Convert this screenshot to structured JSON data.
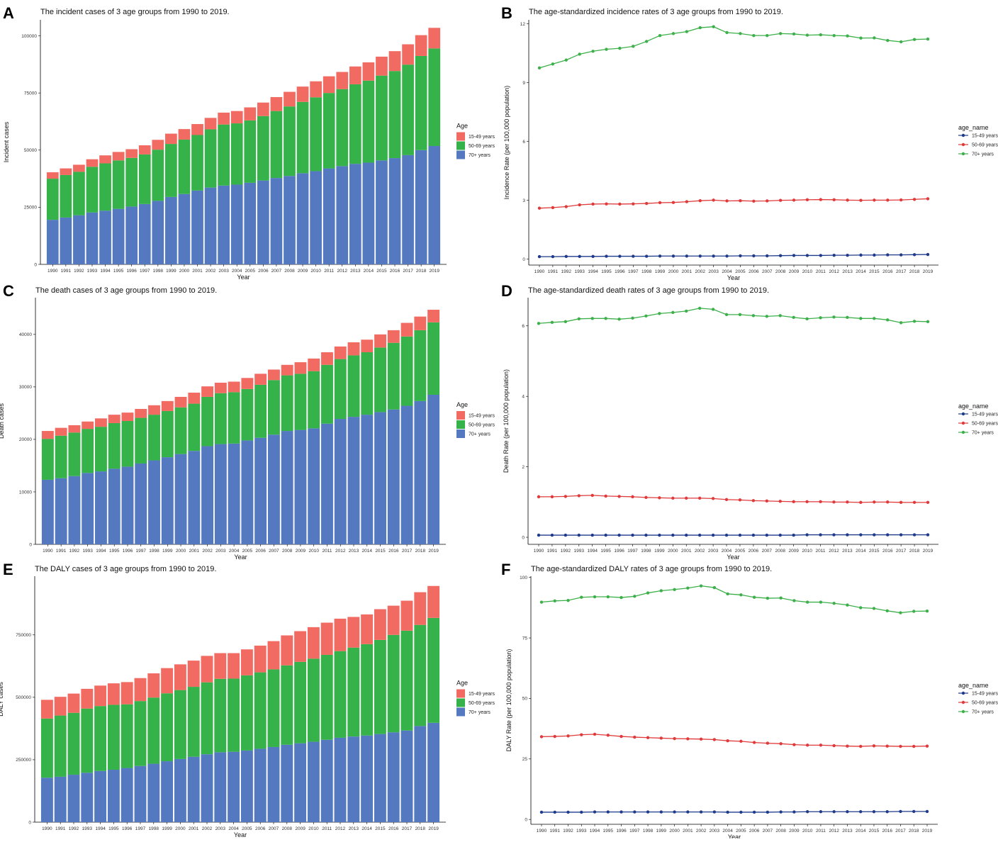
{
  "years": [
    "1990",
    "1991",
    "1992",
    "1993",
    "1994",
    "1995",
    "1996",
    "1997",
    "1998",
    "1999",
    "2000",
    "2001",
    "2002",
    "2003",
    "2004",
    "2005",
    "2006",
    "2007",
    "2008",
    "2009",
    "2010",
    "2011",
    "2012",
    "2013",
    "2014",
    "2015",
    "2016",
    "2017",
    "2018",
    "2019"
  ],
  "colors": {
    "young": "#F26B63",
    "mid": "#35B24A",
    "old": "#5579C0",
    "line_young": "#1F3B8C",
    "line_mid": "#E03A3A",
    "line_old": "#3DB04B"
  },
  "chart_data": [
    {
      "letter": "A",
      "type": "bar",
      "title": "The incident cases of 3 age groups from 1990 to 2019.",
      "xlabel": "Year",
      "ylabel": "Incident cases",
      "ylim": [
        0,
        107000
      ],
      "yticks": [
        0,
        25000,
        50000,
        75000,
        100000
      ],
      "ytick_labels": [
        "0",
        "25000",
        "50000",
        "75000",
        "100000"
      ],
      "legend": {
        "title": "Age",
        "labels": [
          "15-49 years",
          "50-69 years",
          "70+ years"
        ],
        "position": "right"
      },
      "series": [
        {
          "name": "70+ years",
          "values": [
            19500,
            20500,
            21500,
            22700,
            23500,
            24300,
            25300,
            26400,
            27800,
            29500,
            30800,
            32300,
            33600,
            34500,
            34900,
            35700,
            36700,
            37800,
            38700,
            39900,
            40800,
            42000,
            43000,
            44000,
            44500,
            45500,
            46500,
            47800,
            50000,
            51800
          ]
        },
        {
          "name": "50-69 years",
          "values": [
            18000,
            18600,
            19000,
            20000,
            20700,
            21200,
            21300,
            21700,
            22400,
            23200,
            23800,
            24300,
            25500,
            26700,
            26800,
            27300,
            28200,
            29300,
            30400,
            31200,
            32300,
            33000,
            33700,
            34800,
            35900,
            37100,
            38100,
            39600,
            41200,
            42700
          ]
        },
        {
          "name": "15-49 years",
          "values": [
            2800,
            2900,
            3100,
            3300,
            3500,
            3700,
            3800,
            4000,
            4300,
            4500,
            4600,
            4800,
            5000,
            5200,
            5400,
            5700,
            5900,
            6100,
            6400,
            6700,
            7000,
            7300,
            7500,
            7800,
            8000,
            8300,
            8700,
            8900,
            9100,
            9000
          ]
        }
      ]
    },
    {
      "letter": "B",
      "type": "line",
      "title": "The age-standardized incidence rates of 3 age groups from 1990 to 2019.",
      "xlabel": "Year",
      "ylabel": "Incidence Rate (per 100,000 population)",
      "ylim": [
        -0.3,
        12.2
      ],
      "yticks": [
        0,
        3,
        6,
        9,
        12
      ],
      "ytick_labels": [
        "0",
        "3",
        "6",
        "9",
        "12"
      ],
      "legend": {
        "title": "age_name",
        "labels": [
          "15-49 years",
          "50-69 years",
          "70+ years"
        ],
        "position": "right"
      },
      "series": [
        {
          "name": "15-49 years",
          "values": [
            0.13,
            0.13,
            0.14,
            0.14,
            0.14,
            0.15,
            0.15,
            0.15,
            0.15,
            0.16,
            0.16,
            0.16,
            0.16,
            0.16,
            0.16,
            0.17,
            0.17,
            0.17,
            0.18,
            0.19,
            0.19,
            0.19,
            0.2,
            0.2,
            0.21,
            0.21,
            0.22,
            0.22,
            0.23,
            0.24
          ]
        },
        {
          "name": "50-69 years",
          "values": [
            2.6,
            2.63,
            2.68,
            2.77,
            2.81,
            2.82,
            2.81,
            2.82,
            2.84,
            2.88,
            2.89,
            2.93,
            2.98,
            3.01,
            2.97,
            2.98,
            2.96,
            2.97,
            3.0,
            3.01,
            3.03,
            3.04,
            3.03,
            3.01,
            3.0,
            3.01,
            3.01,
            3.02,
            3.05,
            3.08
          ]
        },
        {
          "name": "70+ years",
          "values": [
            9.75,
            9.95,
            10.15,
            10.45,
            10.6,
            10.7,
            10.75,
            10.85,
            11.1,
            11.4,
            11.5,
            11.6,
            11.8,
            11.85,
            11.55,
            11.5,
            11.4,
            11.4,
            11.5,
            11.48,
            11.42,
            11.44,
            11.4,
            11.38,
            11.27,
            11.28,
            11.15,
            11.08,
            11.2,
            11.22
          ]
        }
      ]
    },
    {
      "letter": "C",
      "type": "bar",
      "title": "The death cases of 3 age groups from 1990 to 2019.",
      "xlabel": "Year",
      "ylabel": "Death cases",
      "ylim": [
        0,
        47000
      ],
      "yticks": [
        0,
        10000,
        20000,
        30000,
        40000
      ],
      "ytick_labels": [
        "0",
        "10000",
        "20000",
        "30000",
        "40000"
      ],
      "legend": {
        "title": "Age",
        "labels": [
          "15-49 years",
          "50-69 years",
          "70+ years"
        ],
        "position": "right"
      },
      "series": [
        {
          "name": "70+ years",
          "values": [
            12300,
            12600,
            13000,
            13600,
            13900,
            14400,
            14800,
            15400,
            16000,
            16600,
            17200,
            17800,
            18700,
            19100,
            19200,
            19800,
            20300,
            20900,
            21600,
            21800,
            22100,
            23000,
            23900,
            24300,
            24700,
            25200,
            25700,
            26400,
            27300,
            28500
          ]
        },
        {
          "name": "50-69 years",
          "values": [
            7800,
            8100,
            8300,
            8400,
            8500,
            8700,
            8700,
            8700,
            8700,
            8800,
            8900,
            9000,
            9400,
            9700,
            9800,
            9800,
            10100,
            10400,
            10600,
            10700,
            10900,
            11200,
            11400,
            11700,
            11900,
            12300,
            12700,
            13200,
            13500,
            13800
          ]
        },
        {
          "name": "15-49 years",
          "values": [
            1500,
            1500,
            1400,
            1400,
            1600,
            1600,
            1600,
            1700,
            1800,
            1900,
            2000,
            2100,
            2000,
            2000,
            2000,
            2100,
            2100,
            2000,
            2000,
            2200,
            2400,
            2400,
            2400,
            2500,
            2400,
            2500,
            2400,
            2600,
            2600,
            2400
          ]
        }
      ]
    },
    {
      "letter": "D",
      "type": "line",
      "title": "The age-standardized death rates of 3 age groups from 1990 to 2019.",
      "xlabel": "Year",
      "ylabel": "Death Rate (per 100,000 population)",
      "ylim": [
        -0.2,
        6.8
      ],
      "yticks": [
        0,
        2,
        4,
        6
      ],
      "ytick_labels": [
        "0",
        "2",
        "4",
        "6"
      ],
      "legend": {
        "title": "age_name",
        "labels": [
          "15-49 years",
          "50-69 years",
          "70+ years"
        ],
        "position": "right"
      },
      "series": [
        {
          "name": "15-49 years",
          "values": [
            0.06,
            0.06,
            0.06,
            0.06,
            0.06,
            0.06,
            0.06,
            0.06,
            0.06,
            0.06,
            0.06,
            0.06,
            0.06,
            0.06,
            0.06,
            0.06,
            0.06,
            0.06,
            0.06,
            0.06,
            0.07,
            0.07,
            0.07,
            0.07,
            0.07,
            0.07,
            0.07,
            0.07,
            0.07,
            0.07
          ]
        },
        {
          "name": "50-69 years",
          "values": [
            1.15,
            1.15,
            1.16,
            1.18,
            1.19,
            1.17,
            1.16,
            1.15,
            1.13,
            1.12,
            1.11,
            1.11,
            1.11,
            1.1,
            1.07,
            1.06,
            1.04,
            1.03,
            1.02,
            1.01,
            1.01,
            1.01,
            1.0,
            1.0,
            0.99,
            1.0,
            1.0,
            0.99,
            0.99,
            0.99
          ]
        },
        {
          "name": "70+ years",
          "values": [
            6.07,
            6.1,
            6.12,
            6.2,
            6.21,
            6.21,
            6.19,
            6.22,
            6.28,
            6.35,
            6.38,
            6.42,
            6.5,
            6.47,
            6.32,
            6.32,
            6.29,
            6.27,
            6.29,
            6.24,
            6.2,
            6.23,
            6.25,
            6.24,
            6.21,
            6.21,
            6.17,
            6.09,
            6.13,
            6.12
          ]
        }
      ]
    },
    {
      "letter": "E",
      "type": "bar",
      "title": "The DALY cases of 3 age groups from 1990 to 2019.",
      "xlabel": "Year",
      "ylabel": "DALY cases",
      "ylim": [
        0,
        985000
      ],
      "yticks": [
        0,
        250000,
        500000,
        750000
      ],
      "ytick_labels": [
        "0",
        "250000",
        "500000",
        "750000"
      ],
      "legend": {
        "title": "Age",
        "labels": [
          "15-49 years",
          "50-69 years",
          "70+ years"
        ],
        "position": "right"
      },
      "series": [
        {
          "name": "70+ years",
          "values": [
            178000,
            182000,
            190000,
            198000,
            205000,
            210000,
            217000,
            225000,
            234000,
            244000,
            253000,
            262000,
            272000,
            280000,
            282000,
            287000,
            294000,
            301000,
            310000,
            316000,
            322000,
            330000,
            338000,
            343000,
            347000,
            353000,
            360000,
            367000,
            385000,
            398000
          ]
        },
        {
          "name": "50-69 years",
          "values": [
            237000,
            245000,
            248000,
            257000,
            260000,
            260000,
            255000,
            260000,
            265000,
            272000,
            276000,
            280000,
            288000,
            294000,
            293000,
            301000,
            306000,
            311000,
            318000,
            326000,
            333000,
            340000,
            347000,
            356000,
            366000,
            377000,
            390000,
            400000,
            405000,
            420000
          ]
        },
        {
          "name": "15-49 years",
          "values": [
            75000,
            75000,
            77000,
            79000,
            82000,
            86000,
            89000,
            92000,
            97000,
            101000,
            103000,
            105000,
            106000,
            103000,
            102000,
            104000,
            107000,
            113000,
            120000,
            123000,
            126000,
            129000,
            130000,
            123000,
            119000,
            123000,
            117000,
            120000,
            131000,
            128000
          ]
        }
      ]
    },
    {
      "letter": "F",
      "type": "line",
      "title": "The age-standardized DALY rates of 3 age groups from 1990 to 2019.",
      "xlabel": "Year",
      "ylabel": "DALY Rate (per 100,000 population)",
      "ylim": [
        -2,
        100.5
      ],
      "yticks": [
        0,
        25,
        50,
        75,
        100
      ],
      "ytick_labels": [
        "0",
        "25",
        "50",
        "75",
        "100"
      ],
      "legend": {
        "title": "age_name",
        "labels": [
          "15-49 years",
          "50-69 years",
          "70+ years"
        ],
        "position": "right"
      },
      "series": [
        {
          "name": "15-49 years",
          "values": [
            3.0,
            3.0,
            3.0,
            3.0,
            3.1,
            3.1,
            3.1,
            3.1,
            3.1,
            3.1,
            3.1,
            3.1,
            3.1,
            3.1,
            3.0,
            3.0,
            3.0,
            3.0,
            3.1,
            3.1,
            3.2,
            3.2,
            3.2,
            3.2,
            3.2,
            3.2,
            3.2,
            3.3,
            3.3,
            3.3
          ]
        },
        {
          "name": "50-69 years",
          "values": [
            34.2,
            34.3,
            34.5,
            35.0,
            35.2,
            34.8,
            34.3,
            34.0,
            33.8,
            33.6,
            33.4,
            33.3,
            33.2,
            33.0,
            32.5,
            32.3,
            31.8,
            31.5,
            31.3,
            30.9,
            30.7,
            30.7,
            30.5,
            30.3,
            30.2,
            30.4,
            30.3,
            30.2,
            30.2,
            30.3
          ]
        },
        {
          "name": "70+ years",
          "values": [
            89.8,
            90.3,
            90.5,
            91.8,
            92.0,
            92.0,
            91.7,
            92.2,
            93.6,
            94.5,
            95.0,
            95.6,
            96.5,
            95.8,
            93.2,
            92.8,
            91.8,
            91.4,
            91.5,
            90.4,
            89.8,
            89.8,
            89.3,
            88.6,
            87.5,
            87.2,
            86.2,
            85.4,
            86.0,
            86.1
          ]
        }
      ]
    }
  ]
}
